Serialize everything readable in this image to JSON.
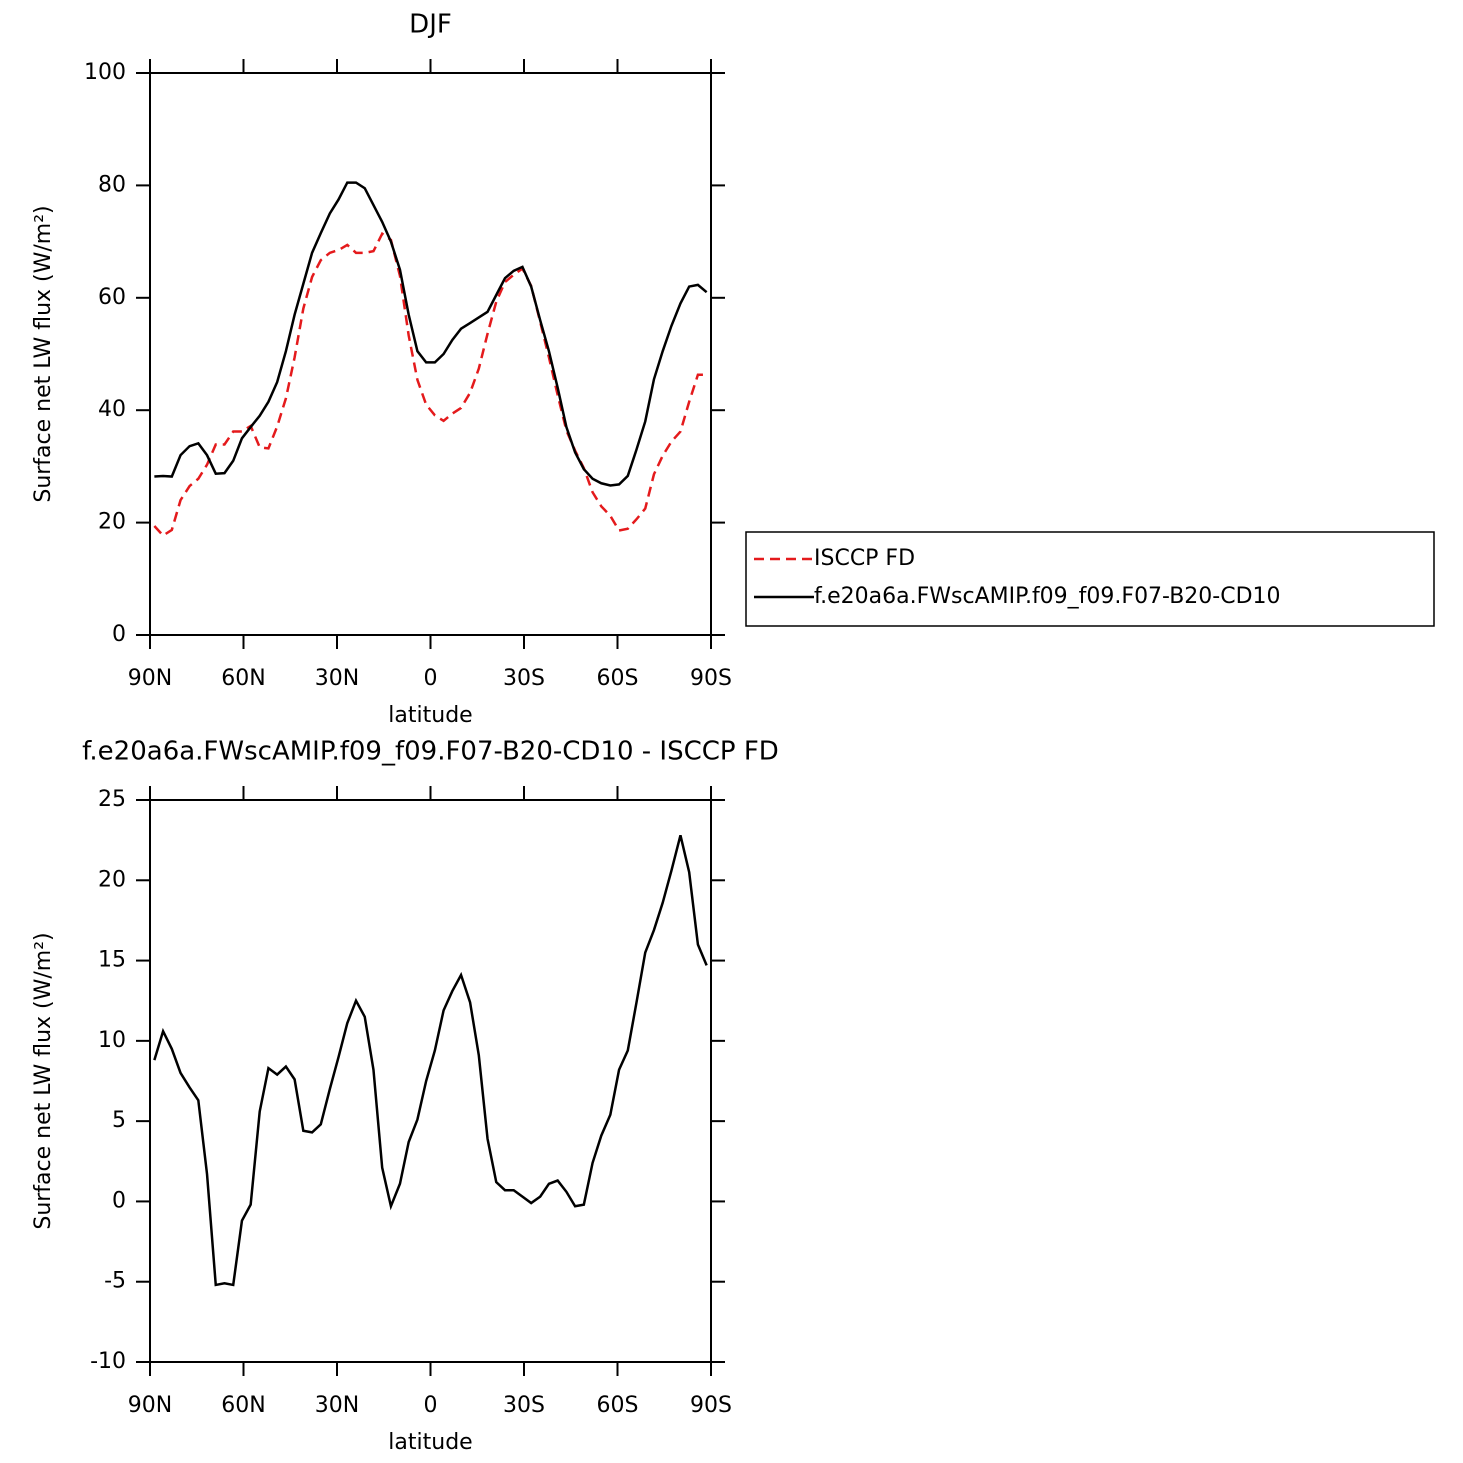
{
  "chart_data": [
    {
      "type": "line",
      "title": "DJF",
      "xlabel": "latitude",
      "ylabel": "Surface net LW flux (W/m²)",
      "x": [
        88.6,
        85.8,
        83.0,
        80.2,
        77.3,
        74.5,
        71.7,
        68.9,
        66.1,
        63.3,
        60.5,
        57.7,
        54.8,
        52.0,
        49.2,
        46.4,
        43.6,
        40.8,
        38.0,
        35.2,
        32.3,
        29.5,
        26.7,
        23.9,
        21.1,
        18.3,
        15.5,
        12.7,
        9.8,
        7.0,
        4.2,
        1.4,
        -1.4,
        -4.2,
        -7.0,
        -9.8,
        -12.7,
        -15.5,
        -18.3,
        -21.1,
        -23.9,
        -26.7,
        -29.5,
        -32.3,
        -35.2,
        -38.0,
        -40.8,
        -43.6,
        -46.4,
        -49.2,
        -52.0,
        -54.8,
        -57.7,
        -60.5,
        -63.3,
        -66.1,
        -68.9,
        -71.7,
        -74.5,
        -77.3,
        -80.2,
        -83.0,
        -85.8,
        -88.6
      ],
      "series": [
        {
          "name": "ISCCP FD",
          "color": "#e41a1c",
          "linestyle": "dashed",
          "values": [
            19.4,
            17.7,
            18.7,
            24.0,
            26.5,
            27.8,
            30.3,
            33.9,
            33.9,
            36.2,
            36.2,
            37.2,
            33.4,
            33.2,
            37.1,
            42.1,
            49.4,
            58.1,
            63.7,
            66.7,
            68.0,
            68.5,
            69.4,
            68.0,
            68.0,
            68.3,
            71.4,
            70.3,
            63.9,
            53.3,
            45.4,
            41.0,
            39.1,
            38.1,
            39.4,
            40.4,
            43.1,
            47.4,
            53.6,
            59.3,
            62.8,
            64.1,
            65.2,
            62.1,
            55.7,
            49.4,
            42.7,
            36.4,
            32.8,
            29.7,
            25.4,
            22.9,
            21.2,
            18.6,
            18.9,
            20.6,
            22.5,
            28.6,
            31.9,
            34.4,
            36.2,
            41.5,
            46.3,
            46.3
          ]
        },
        {
          "name": "f.e20a6a.FWscAMIP.f09_f09.F07-B20-CD10",
          "color": "#000000",
          "linestyle": "solid",
          "values": [
            28.2,
            28.3,
            28.2,
            32.0,
            33.6,
            34.1,
            32.0,
            28.7,
            28.8,
            31.0,
            35.0,
            37.0,
            39.0,
            41.5,
            45.0,
            50.5,
            57.0,
            62.5,
            68.0,
            71.5,
            75.0,
            77.5,
            80.5,
            80.5,
            79.5,
            76.5,
            73.5,
            70.0,
            65.0,
            57.0,
            50.5,
            48.5,
            48.5,
            50.0,
            52.5,
            54.5,
            55.5,
            56.5,
            57.5,
            60.5,
            63.5,
            64.8,
            65.5,
            62.0,
            56.0,
            50.5,
            44.0,
            37.0,
            32.5,
            29.5,
            27.8,
            27.0,
            26.6,
            26.8,
            28.3,
            33.0,
            38.0,
            45.5,
            50.5,
            55.0,
            59.0,
            62.0,
            62.3,
            61.0
          ]
        }
      ],
      "xlim": [
        90,
        -90
      ],
      "xticks": [
        {
          "value": 90,
          "label": "90N"
        },
        {
          "value": 60,
          "label": "60N"
        },
        {
          "value": 30,
          "label": "30N"
        },
        0,
        {
          "value": -30,
          "label": "30S"
        },
        {
          "value": -60,
          "label": "60S"
        },
        {
          "value": -90,
          "label": "90S"
        }
      ],
      "ylim": [
        0,
        100
      ],
      "yticks": [
        0,
        20,
        40,
        60,
        80,
        100
      ],
      "legend": "right"
    },
    {
      "type": "line",
      "title": "f.e20a6a.FWscAMIP.f09_f09.F07-B20-CD10 - ISCCP FD",
      "xlabel": "latitude",
      "ylabel": "Surface net LW flux (W/m²)",
      "x": [
        88.6,
        85.8,
        83.0,
        80.2,
        77.3,
        74.5,
        71.7,
        68.9,
        66.1,
        63.3,
        60.5,
        57.7,
        54.8,
        52.0,
        49.2,
        46.4,
        43.6,
        40.8,
        38.0,
        35.2,
        32.3,
        29.5,
        26.7,
        23.9,
        21.1,
        18.3,
        15.5,
        12.7,
        9.8,
        7.0,
        4.2,
        1.4,
        -1.4,
        -4.2,
        -7.0,
        -9.8,
        -12.7,
        -15.5,
        -18.3,
        -21.1,
        -23.9,
        -26.7,
        -29.5,
        -32.3,
        -35.2,
        -38.0,
        -40.8,
        -43.6,
        -46.4,
        -49.2,
        -52.0,
        -54.8,
        -57.7,
        -60.5,
        -63.3,
        -66.1,
        -68.9,
        -71.7,
        -74.5,
        -77.3,
        -80.2,
        -83.0,
        -85.8,
        -88.6
      ],
      "values": [
        8.8,
        10.6,
        9.5,
        8.0,
        7.1,
        6.3,
        1.7,
        -5.2,
        -5.1,
        -5.2,
        -1.2,
        -0.2,
        5.6,
        8.3,
        7.9,
        8.4,
        7.6,
        4.4,
        4.3,
        4.8,
        7.0,
        9.0,
        11.1,
        12.5,
        11.5,
        8.2,
        2.1,
        -0.3,
        1.1,
        3.7,
        5.1,
        7.5,
        9.4,
        11.9,
        13.1,
        14.1,
        12.4,
        9.1,
        3.9,
        1.2,
        0.7,
        0.7,
        0.3,
        -0.1,
        0.3,
        1.1,
        1.3,
        0.6,
        -0.3,
        -0.2,
        2.4,
        4.1,
        5.4,
        8.2,
        9.4,
        12.4,
        15.5,
        16.9,
        18.6,
        20.6,
        22.8,
        20.5,
        16.0,
        14.7
      ],
      "color": "#000000",
      "xlim": [
        90,
        -90
      ],
      "xticks": [
        {
          "value": 90,
          "label": "90N"
        },
        {
          "value": 60,
          "label": "60N"
        },
        {
          "value": 30,
          "label": "30N"
        },
        0,
        {
          "value": -30,
          "label": "30S"
        },
        {
          "value": -60,
          "label": "60S"
        },
        {
          "value": -90,
          "label": "90S"
        }
      ],
      "ylim": [
        -10,
        25
      ],
      "yticks": [
        -10,
        -5,
        0,
        5,
        10,
        15,
        20,
        25
      ]
    }
  ]
}
